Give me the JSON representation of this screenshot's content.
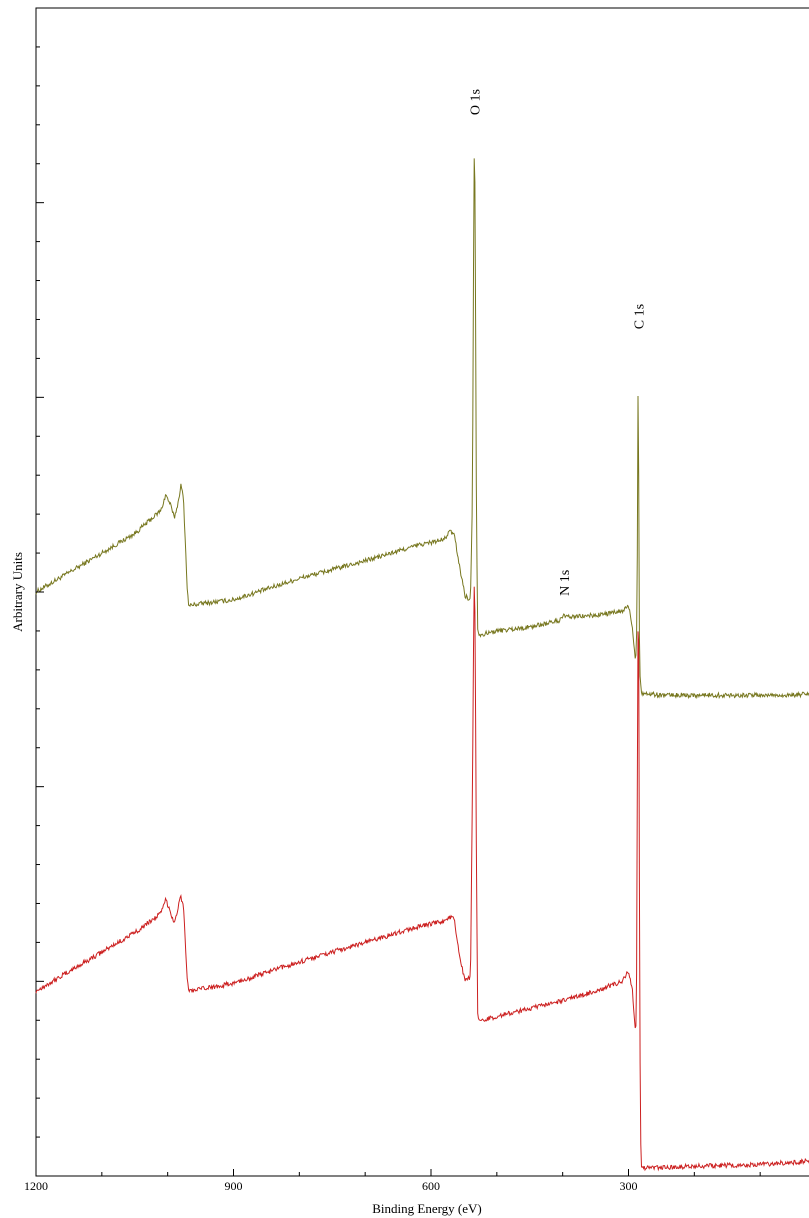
{
  "chart_data": {
    "type": "line",
    "title": "",
    "xlabel": "Binding Energy (eV)",
    "ylabel": "Arbitrary Units",
    "xlim": [
      1200,
      0
    ],
    "x_ticks": [
      {
        "value": 1200,
        "label": "1200"
      },
      {
        "value": 900,
        "label": "900"
      },
      {
        "value": 600,
        "label": "600"
      },
      {
        "value": 300,
        "label": "300"
      }
    ],
    "ylim": [
      0,
      6
    ],
    "y_major_ticks": [
      1,
      2,
      3,
      4,
      5
    ],
    "y_minor_per_major": 4,
    "grid": false,
    "legend": "none",
    "series": [
      {
        "color": "#77771f",
        "noise": 0.012,
        "points": [
          [
            1200,
            3.0
          ],
          [
            1150,
            3.1
          ],
          [
            1100,
            3.2
          ],
          [
            1050,
            3.3
          ],
          [
            1010,
            3.42
          ],
          [
            1003,
            3.5
          ],
          [
            996,
            3.45
          ],
          [
            990,
            3.38
          ],
          [
            984,
            3.46
          ],
          [
            980,
            3.55
          ],
          [
            976,
            3.48
          ],
          [
            970,
            3.0
          ],
          [
            968,
            2.93
          ],
          [
            950,
            2.94
          ],
          [
            900,
            2.96
          ],
          [
            800,
            3.07
          ],
          [
            700,
            3.16
          ],
          [
            620,
            3.24
          ],
          [
            580,
            3.27
          ],
          [
            572,
            3.31
          ],
          [
            565,
            3.3
          ],
          [
            555,
            3.1
          ],
          [
            548,
            2.98
          ],
          [
            540,
            2.96
          ],
          [
            537,
            3.5
          ],
          [
            535,
            5.0
          ],
          [
            534,
            5.37
          ],
          [
            533,
            5.0
          ],
          [
            531,
            3.4
          ],
          [
            529,
            2.8
          ],
          [
            525,
            2.78
          ],
          [
            500,
            2.8
          ],
          [
            450,
            2.82
          ],
          [
            410,
            2.85
          ],
          [
            400,
            2.86
          ],
          [
            398,
            2.9
          ],
          [
            396,
            2.87
          ],
          [
            350,
            2.88
          ],
          [
            310,
            2.9
          ],
          [
            300,
            2.93
          ],
          [
            294,
            2.82
          ],
          [
            290,
            2.66
          ],
          [
            288,
            2.7
          ],
          [
            287,
            3.0
          ],
          [
            286,
            3.5
          ],
          [
            285.5,
            4.1
          ],
          [
            285,
            4.27
          ],
          [
            284.5,
            3.6
          ],
          [
            284,
            3.0
          ],
          [
            283,
            2.6
          ],
          [
            281,
            2.5
          ],
          [
            279,
            2.48
          ],
          [
            250,
            2.47
          ],
          [
            150,
            2.47
          ],
          [
            50,
            2.47
          ],
          [
            15,
            2.48
          ],
          [
            10,
            2.51
          ],
          [
            7,
            2.48
          ],
          [
            0,
            2.47
          ]
        ]
      },
      {
        "color": "#cc2020",
        "noise": 0.012,
        "points": [
          [
            1200,
            0.95
          ],
          [
            1150,
            1.05
          ],
          [
            1100,
            1.15
          ],
          [
            1050,
            1.25
          ],
          [
            1010,
            1.35
          ],
          [
            1003,
            1.42
          ],
          [
            996,
            1.36
          ],
          [
            990,
            1.3
          ],
          [
            984,
            1.38
          ],
          [
            980,
            1.44
          ],
          [
            976,
            1.38
          ],
          [
            970,
            1.0
          ],
          [
            968,
            0.95
          ],
          [
            950,
            0.96
          ],
          [
            900,
            0.99
          ],
          [
            800,
            1.1
          ],
          [
            700,
            1.2
          ],
          [
            620,
            1.28
          ],
          [
            580,
            1.31
          ],
          [
            572,
            1.33
          ],
          [
            565,
            1.32
          ],
          [
            555,
            1.1
          ],
          [
            548,
            1.0
          ],
          [
            540,
            1.02
          ],
          [
            537,
            2.0
          ],
          [
            535,
            2.9
          ],
          [
            534,
            3.1
          ],
          [
            533,
            2.8
          ],
          [
            531,
            1.6
          ],
          [
            529,
            0.8
          ],
          [
            525,
            0.8
          ],
          [
            500,
            0.82
          ],
          [
            450,
            0.86
          ],
          [
            400,
            0.9
          ],
          [
            350,
            0.95
          ],
          [
            310,
            1.0
          ],
          [
            300,
            1.05
          ],
          [
            294,
            0.95
          ],
          [
            290,
            0.75
          ],
          [
            288,
            0.8
          ],
          [
            287,
            1.6
          ],
          [
            286,
            2.6
          ],
          [
            285,
            3.05
          ],
          [
            284,
            2.4
          ],
          [
            283,
            0.8
          ],
          [
            281,
            0.05
          ],
          [
            279,
            0.04
          ],
          [
            200,
            0.05
          ],
          [
            100,
            0.06
          ],
          [
            50,
            0.07
          ],
          [
            15,
            0.08
          ],
          [
            10,
            0.1
          ],
          [
            7,
            0.08
          ],
          [
            0,
            0.08
          ]
        ]
      }
    ],
    "annotations": [
      {
        "text": "O 1s",
        "x": 534,
        "y": 5.45
      },
      {
        "text": "N 1s",
        "x": 398,
        "y": 2.98
      },
      {
        "text": "C 1s",
        "x": 285,
        "y": 4.35
      }
    ]
  }
}
